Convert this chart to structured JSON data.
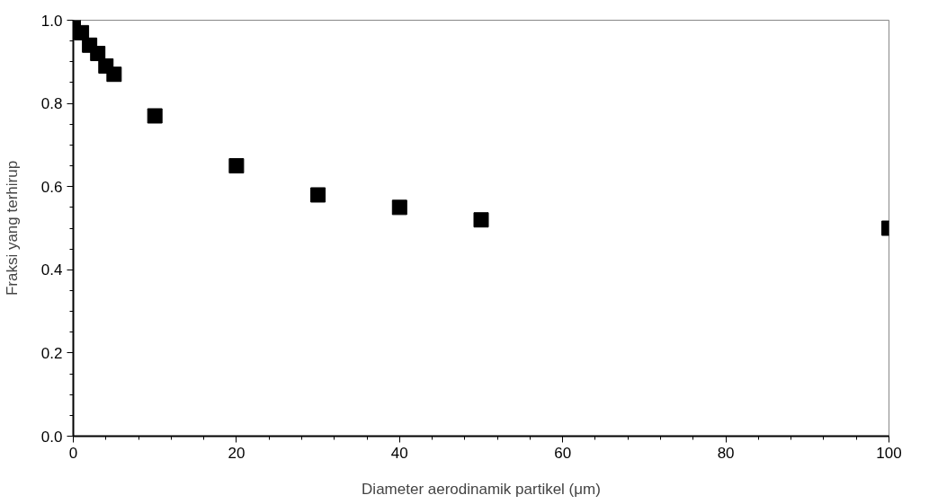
{
  "chart_data": {
    "type": "scatter",
    "xlabel": "Diameter aerodinamik partikel (μm)",
    "ylabel": "Fraksi yang terhirup",
    "x": [
      0,
      1,
      2,
      3,
      4,
      5,
      10,
      20,
      30,
      40,
      50,
      100
    ],
    "values": [
      1.0,
      0.97,
      0.94,
      0.92,
      0.89,
      0.87,
      0.77,
      0.65,
      0.58,
      0.55,
      0.52,
      0.5
    ],
    "color": "#000000",
    "marker": "square",
    "grid": false,
    "xlim": [
      0,
      100
    ],
    "xticks": [
      0,
      20,
      40,
      60,
      80,
      100
    ],
    "ylim": [
      0,
      1.0
    ],
    "yticks": [
      {
        "value": 0,
        "label": "0.0"
      },
      {
        "value": 0.2,
        "label": "0.2"
      },
      {
        "value": 0.4,
        "label": "0.4"
      },
      {
        "value": 0.6,
        "label": "0.6"
      },
      {
        "value": 0.8,
        "label": "0.8"
      },
      {
        "value": 1.0,
        "label": "1.0"
      }
    ]
  }
}
